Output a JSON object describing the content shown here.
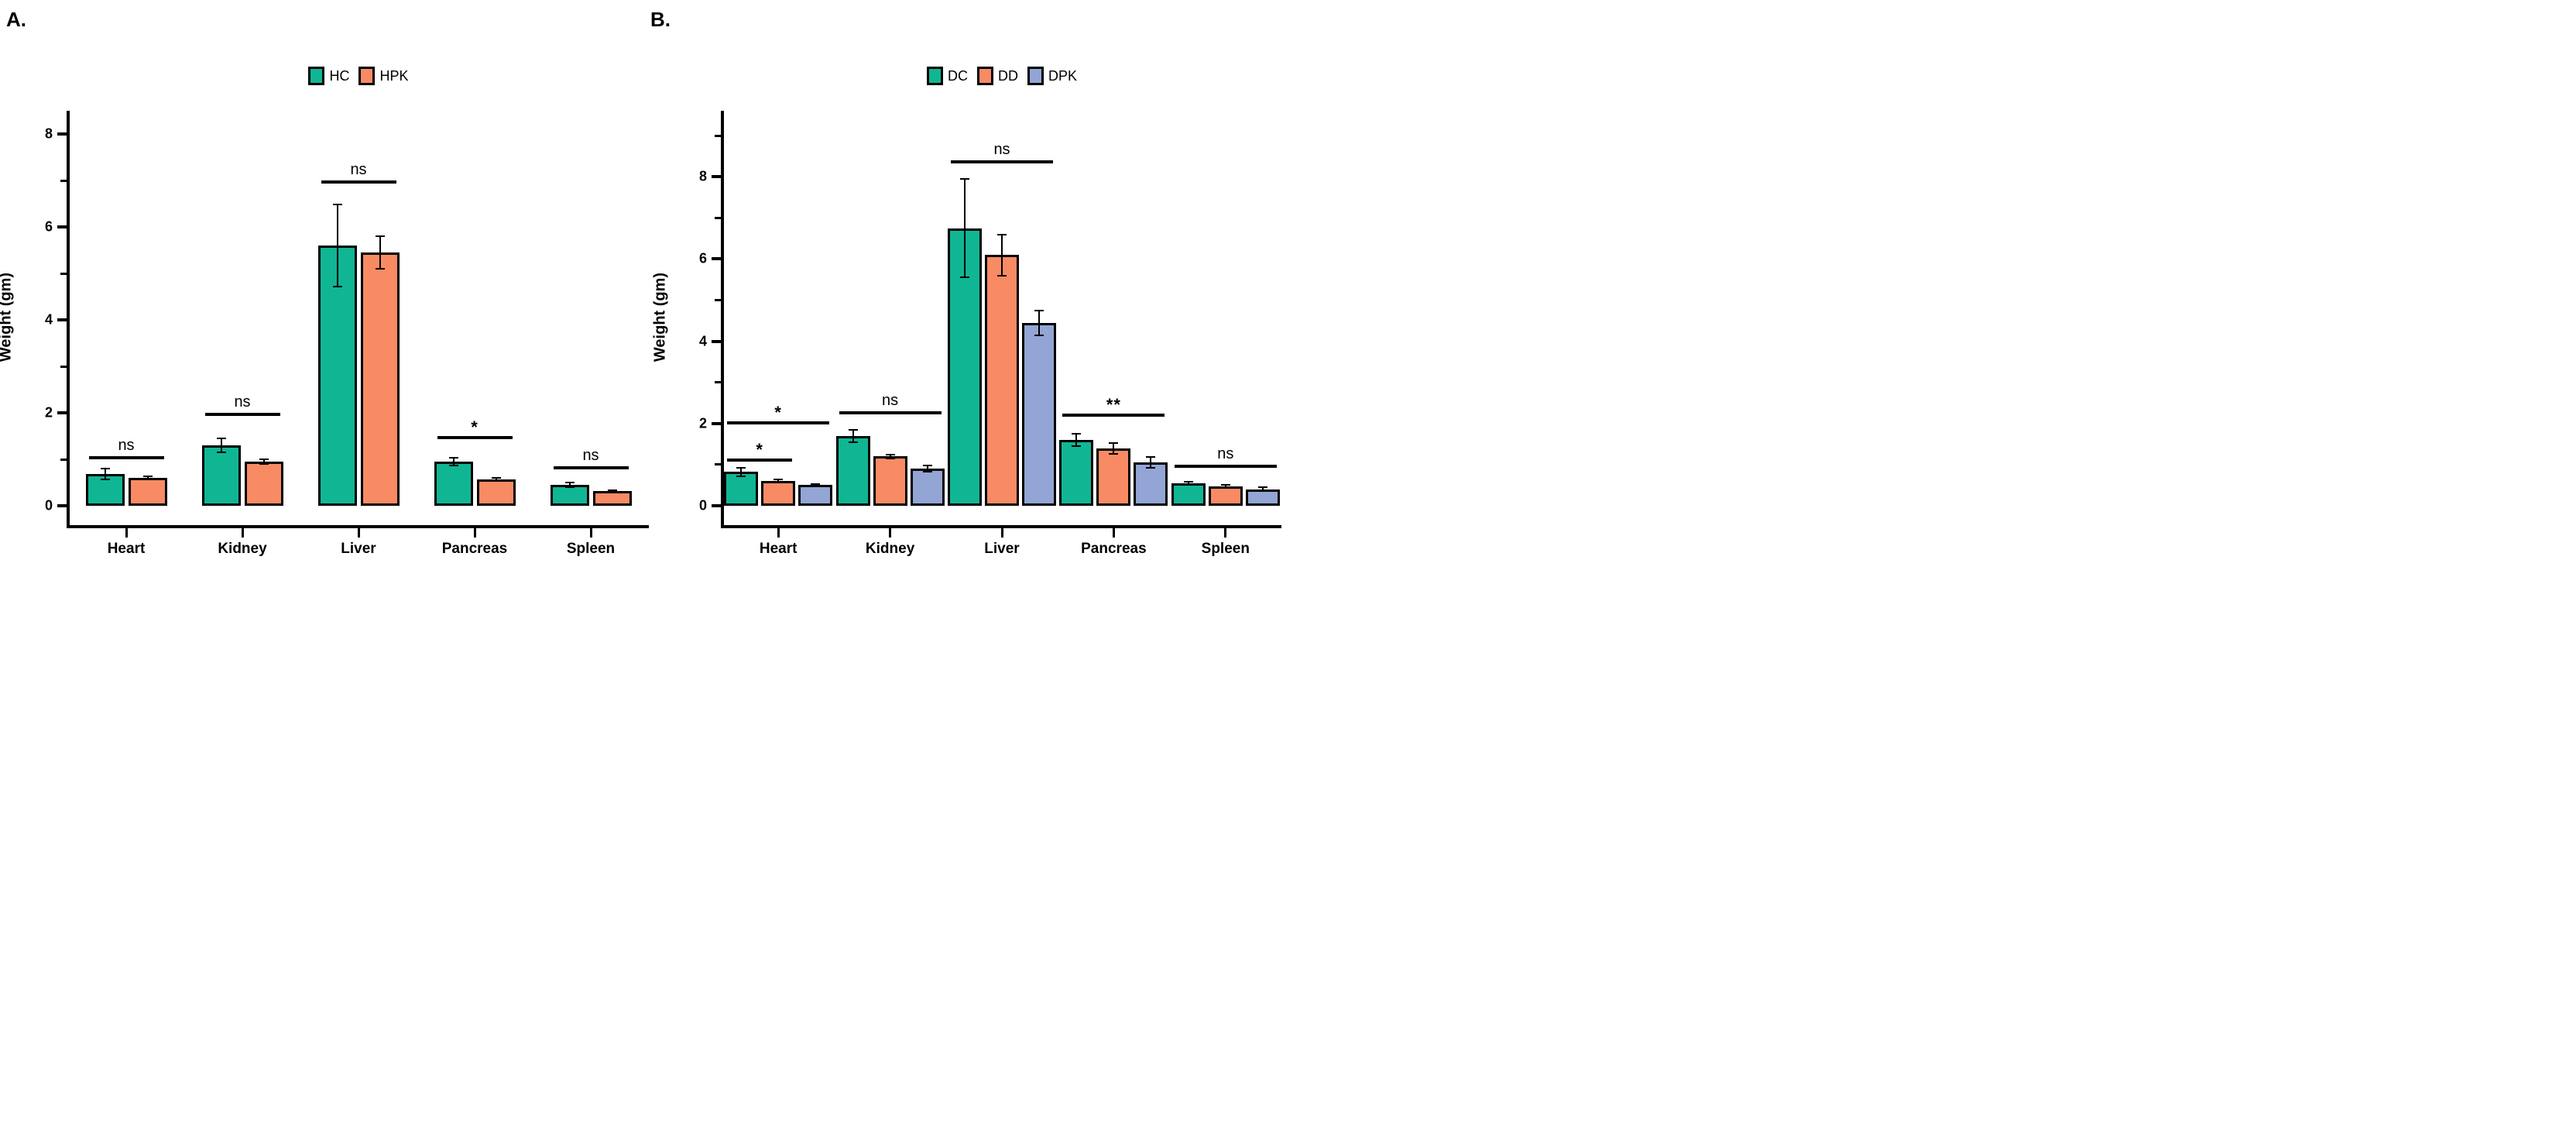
{
  "figure": {
    "panels": [
      {
        "panel_label": "A.",
        "ylabel": "Weight (gm)"
      },
      {
        "panel_label": "B.",
        "ylabel": "Weight (gm)"
      }
    ]
  },
  "colors": {
    "teal": "#10B694",
    "orange": "#F98B64",
    "periwinkle": "#93A5D4",
    "axis_black": "#000000"
  },
  "chart_data": [
    {
      "type": "bar",
      "panel": "A",
      "title": "",
      "ylabel": "Weight (gm)",
      "categories": [
        "Heart",
        "Kidney",
        "Liver",
        "Pancreas",
        "Spleen"
      ],
      "ylim": [
        0,
        8.5
      ],
      "yticks": [
        0,
        2,
        4,
        6,
        8
      ],
      "minor_yticks": [
        1,
        3,
        5,
        7
      ],
      "grid": false,
      "legend_position": "top center",
      "series": [
        {
          "name": "HC",
          "color": "#10B694",
          "values": [
            0.68,
            1.3,
            5.6,
            0.95,
            0.45
          ],
          "errors": [
            0.12,
            0.15,
            0.88,
            0.08,
            0.05
          ]
        },
        {
          "name": "HPK",
          "color": "#F98B64",
          "values": [
            0.6,
            0.95,
            5.45,
            0.57,
            0.32
          ],
          "errors": [
            0.03,
            0.05,
            0.35,
            0.03,
            0.02
          ]
        }
      ],
      "significance": [
        {
          "category": "Heart",
          "label": "ns",
          "from": 0,
          "to": 1,
          "y": 1.07
        },
        {
          "category": "Kidney",
          "label": "ns",
          "from": 0,
          "to": 1,
          "y": 2.0
        },
        {
          "category": "Liver",
          "label": "ns",
          "from": 0,
          "to": 1,
          "y": 7.0
        },
        {
          "category": "Pancreas",
          "label": "*",
          "from": 0,
          "to": 1,
          "y": 1.5
        },
        {
          "category": "Spleen",
          "label": "ns",
          "from": 0,
          "to": 1,
          "y": 0.85
        }
      ]
    },
    {
      "type": "bar",
      "panel": "B",
      "title": "",
      "ylabel": "Weight (gm)",
      "categories": [
        "Heart",
        "Kidney",
        "Liver",
        "Pancreas",
        "Spleen"
      ],
      "ylim": [
        0,
        9.6
      ],
      "yticks": [
        0,
        2,
        4,
        6,
        8
      ],
      "minor_yticks": [
        1,
        3,
        5,
        7,
        9
      ],
      "grid": false,
      "legend_position": "top center",
      "series": [
        {
          "name": "DC",
          "color": "#10B694",
          "values": [
            0.82,
            1.7,
            6.75,
            1.6,
            0.55
          ],
          "errors": [
            0.1,
            0.15,
            1.2,
            0.15,
            0.04
          ]
        },
        {
          "name": "DD",
          "color": "#F98B64",
          "values": [
            0.6,
            1.2,
            6.1,
            1.4,
            0.47
          ],
          "errors": [
            0.04,
            0.05,
            0.5,
            0.13,
            0.03
          ]
        },
        {
          "name": "DPK",
          "color": "#93A5D4",
          "values": [
            0.5,
            0.9,
            4.45,
            1.05,
            0.4
          ],
          "errors": [
            0.03,
            0.07,
            0.3,
            0.13,
            0.05
          ]
        }
      ],
      "significance": [
        {
          "category": "Heart",
          "label": "*",
          "from": 0,
          "to": 1,
          "y": 1.15
        },
        {
          "category": "Heart",
          "label": "*",
          "from": 0,
          "to": 2,
          "y": 2.05
        },
        {
          "category": "Kidney",
          "label": "ns",
          "from": 0,
          "to": 2,
          "y": 2.3
        },
        {
          "category": "Liver",
          "label": "ns",
          "from": 0,
          "to": 2,
          "y": 8.4
        },
        {
          "category": "Pancreas",
          "label": "**",
          "from": 0,
          "to": 2,
          "y": 2.25
        },
        {
          "category": "Spleen",
          "label": "ns",
          "from": 0,
          "to": 2,
          "y": 1.0
        }
      ]
    }
  ]
}
